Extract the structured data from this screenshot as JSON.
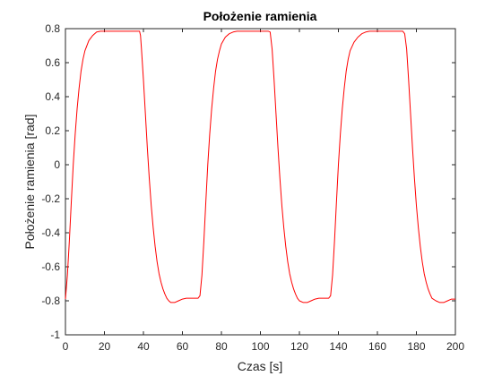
{
  "chart_data": {
    "type": "line",
    "title": "Położenie ramienia",
    "xlabel": "Czas [s]",
    "ylabel": "Położenie ramienia [rad]",
    "xlim": [
      0,
      200
    ],
    "ylim": [
      -1,
      0.8
    ],
    "xticks": [
      0,
      20,
      40,
      60,
      80,
      100,
      120,
      140,
      160,
      180,
      200
    ],
    "yticks": [
      -1,
      -0.8,
      -0.6,
      -0.4,
      -0.2,
      0,
      0.2,
      0.4,
      0.6,
      0.8
    ],
    "xtick_labels": [
      "0",
      "20",
      "40",
      "60",
      "80",
      "100",
      "120",
      "140",
      "160",
      "180",
      "200"
    ],
    "ytick_labels": [
      "-1",
      "-0.8",
      "-0.6",
      "-0.4",
      "-0.2",
      "0",
      "0.2",
      "0.4",
      "0.6",
      "0.8"
    ],
    "grid": false,
    "series": [
      {
        "color": "#ff0000",
        "x": [
          0,
          1,
          2,
          3,
          4,
          5,
          6,
          7,
          8,
          9,
          10,
          12,
          14,
          16,
          18,
          20,
          22,
          25,
          28,
          31,
          34,
          36,
          38,
          38.5,
          39,
          40,
          41,
          42,
          43,
          44,
          45,
          46,
          47,
          48,
          49,
          50,
          51,
          52,
          53,
          54,
          56,
          58,
          60,
          62,
          64,
          66,
          68,
          69,
          70,
          71,
          72,
          73,
          74,
          75,
          76,
          77,
          78,
          79,
          80,
          82,
          84,
          86,
          88,
          90,
          92,
          95,
          98,
          101,
          104,
          105,
          106,
          107,
          108,
          109,
          110,
          111,
          112,
          113,
          114,
          115,
          116,
          117,
          118,
          119,
          120,
          122,
          124,
          126,
          128,
          130,
          132,
          134,
          135,
          136,
          137,
          138,
          139,
          140,
          141,
          142,
          143,
          144,
          145,
          146,
          148,
          150,
          152,
          154,
          156,
          158,
          161,
          164,
          167,
          170,
          173,
          174,
          175,
          176,
          177,
          178,
          179,
          180,
          181,
          182,
          183,
          184,
          185,
          186,
          187,
          188,
          190,
          192,
          194,
          196,
          198,
          200
        ],
        "values": [
          -0.79,
          -0.65,
          -0.45,
          -0.22,
          0.0,
          0.18,
          0.33,
          0.45,
          0.55,
          0.62,
          0.67,
          0.73,
          0.76,
          0.78,
          0.785,
          0.785,
          0.785,
          0.785,
          0.785,
          0.785,
          0.785,
          0.785,
          0.785,
          0.76,
          0.68,
          0.5,
          0.3,
          0.1,
          -0.08,
          -0.24,
          -0.37,
          -0.48,
          -0.57,
          -0.64,
          -0.69,
          -0.73,
          -0.76,
          -0.785,
          -0.8,
          -0.81,
          -0.81,
          -0.8,
          -0.79,
          -0.785,
          -0.785,
          -0.785,
          -0.785,
          -0.77,
          -0.65,
          -0.45,
          -0.22,
          0.0,
          0.18,
          0.33,
          0.45,
          0.55,
          0.62,
          0.67,
          0.71,
          0.75,
          0.77,
          0.78,
          0.785,
          0.785,
          0.785,
          0.785,
          0.785,
          0.785,
          0.785,
          0.78,
          0.68,
          0.5,
          0.3,
          0.1,
          -0.08,
          -0.24,
          -0.37,
          -0.48,
          -0.57,
          -0.64,
          -0.69,
          -0.73,
          -0.76,
          -0.785,
          -0.8,
          -0.81,
          -0.81,
          -0.8,
          -0.79,
          -0.785,
          -0.785,
          -0.785,
          -0.785,
          -0.77,
          -0.65,
          -0.45,
          -0.22,
          0.0,
          0.18,
          0.33,
          0.45,
          0.55,
          0.62,
          0.67,
          0.72,
          0.75,
          0.77,
          0.78,
          0.785,
          0.785,
          0.785,
          0.785,
          0.785,
          0.785,
          0.785,
          0.77,
          0.68,
          0.5,
          0.3,
          0.1,
          -0.08,
          -0.24,
          -0.37,
          -0.48,
          -0.57,
          -0.64,
          -0.69,
          -0.73,
          -0.76,
          -0.785,
          -0.8,
          -0.81,
          -0.81,
          -0.8,
          -0.79,
          -0.79
        ]
      }
    ]
  }
}
